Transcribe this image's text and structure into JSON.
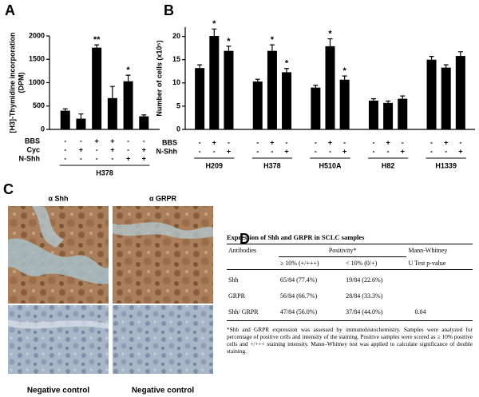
{
  "panel_labels": [
    "A",
    "B",
    "C",
    "D"
  ],
  "chart_data": [
    {
      "type": "bar",
      "ylabel": [
        "[H3]-Thymidine incorporation",
        "(DPM)"
      ],
      "groups": [
        "H378"
      ],
      "values": [
        400,
        230,
        1750,
        670,
        1030,
        280
      ],
      "errors": [
        40,
        100,
        60,
        250,
        130,
        30
      ],
      "annotations": [
        null,
        null,
        "**",
        null,
        "*",
        null
      ],
      "conditions": [
        {
          "name": "BBS",
          "signs": [
            "-",
            "-",
            "+",
            "+",
            "-",
            "-"
          ]
        },
        {
          "name": "Cyc",
          "signs": [
            "-",
            "+",
            "-",
            "+",
            "-",
            "+"
          ]
        },
        {
          "name": "N-Shh",
          "signs": [
            "-",
            "-",
            "-",
            "-",
            "+",
            "+"
          ]
        }
      ],
      "color": "#000000",
      "ylim": [
        0,
        2000
      ],
      "yticks": [
        0,
        500,
        1000,
        1500,
        2000
      ]
    },
    {
      "type": "bar",
      "ylabel": [
        "Number of cells (x10⁵)"
      ],
      "groups": [
        "H209",
        "H378",
        "H510A",
        "H82",
        "H1339"
      ],
      "values": [
        13.2,
        20.1,
        16.9,
        10.3,
        16.9,
        12.3,
        9.0,
        17.9,
        10.7,
        6.2,
        5.7,
        6.6,
        15.0,
        13.3,
        15.8
      ],
      "errors": [
        0.7,
        1.5,
        1.0,
        0.5,
        1.3,
        0.8,
        0.5,
        1.6,
        0.8,
        0.4,
        0.4,
        0.6,
        0.7,
        0.6,
        0.9
      ],
      "annotations": [
        null,
        "*",
        "*",
        null,
        "*",
        "*",
        null,
        "*",
        "*",
        null,
        null,
        null,
        null,
        null,
        null
      ],
      "conditions": [
        {
          "name": "BBS",
          "signs": [
            "-",
            "+",
            "-",
            "-",
            "+",
            "-",
            "-",
            "+",
            "-",
            "-",
            "+",
            "-",
            "-",
            "+",
            "-"
          ]
        },
        {
          "name": "N-Shh",
          "signs": [
            "-",
            "-",
            "+",
            "-",
            "-",
            "+",
            "-",
            "-",
            "+",
            "-",
            "-",
            "+",
            "-",
            "-",
            "+"
          ]
        }
      ],
      "color": "#000000",
      "ylim": [
        0,
        22
      ],
      "yticks": [
        0,
        5,
        10,
        15,
        20
      ]
    }
  ],
  "micrographs": {
    "columns": [
      "α Shh",
      "α GRPR"
    ],
    "bottom_labels": [
      "Negative control",
      "Negative control"
    ]
  },
  "table": {
    "title": "Expression of Shh and GRPR in SCLC samples",
    "header": [
      "Antibodies",
      "Positivity*",
      "Mann-Whitney"
    ],
    "subheader": [
      "≥ 10% (+/+++)",
      "< 10% (0/+)",
      "U Test p-value"
    ],
    "rows": [
      [
        "Shh",
        "65/84 (77.4%)",
        "19/84 (22.6%)"
      ],
      [
        "GRPR",
        "56/84 (66.7%)",
        "28/84 (33.3%)"
      ],
      [
        "Shh/ GRPR",
        "47/84 (56.0%)",
        "37/84 (44.0%)",
        "0.04"
      ]
    ],
    "footnote": "*Shh and GRPR expression was assessed by immunohistochemistry. Samples were analyzed for percentage of positive cells and intensity of the staining. Positive samples were scored as ≥ 10% positive cells and +/+++ staining intensity. Mann–Whitney test was applied to calculate significance of double staining."
  }
}
